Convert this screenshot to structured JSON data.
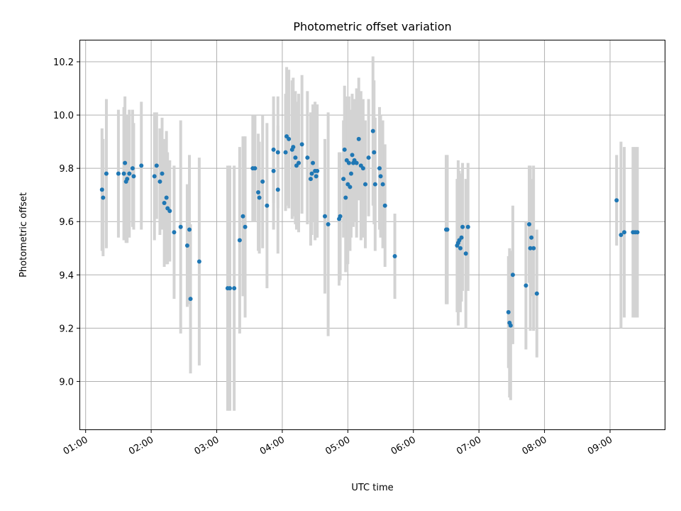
{
  "chart_data": {
    "type": "scatter",
    "title": "Photometric offset variation",
    "xlabel": "UTC time",
    "ylabel": "Photometric offset",
    "xlim": [
      "00:55",
      "09:50"
    ],
    "ylim": [
      8.82,
      10.28
    ],
    "grid": true,
    "x_ticks": [
      "01:00",
      "02:00",
      "03:00",
      "04:00",
      "05:00",
      "06:00",
      "07:00",
      "08:00",
      "09:00"
    ],
    "y_ticks": [
      "9.0",
      "9.2",
      "9.4",
      "9.6",
      "9.8",
      "10.0",
      "10.2"
    ],
    "y_tick_values": [
      9.0,
      9.2,
      9.4,
      9.6,
      9.8,
      10.0,
      10.2
    ],
    "colors": {
      "points": "#1f77b4",
      "error_bars": "#d3d3d3"
    },
    "series": [
      {
        "columns": [
          "time",
          "offset",
          "error"
        ],
        "points": [
          [
            "01:15",
            9.72,
            0.23
          ],
          [
            "01:16",
            9.69,
            0.22
          ],
          [
            "01:19",
            9.78,
            0.28
          ],
          [
            "01:30",
            9.78,
            0.24
          ],
          [
            "01:35",
            9.78,
            0.25
          ],
          [
            "01:36",
            9.82,
            0.25
          ],
          [
            "01:37",
            9.75,
            0.23
          ],
          [
            "01:38",
            9.76,
            0.24
          ],
          [
            "01:40",
            9.78,
            0.24
          ],
          [
            "01:43",
            9.8,
            0.22
          ],
          [
            "01:44",
            9.77,
            0.2
          ],
          [
            "01:51",
            9.81,
            0.24
          ],
          [
            "02:03",
            9.77,
            0.24
          ],
          [
            "02:05",
            9.81,
            0.2
          ],
          [
            "02:08",
            9.75,
            0.2
          ],
          [
            "02:10",
            9.78,
            0.21
          ],
          [
            "02:12",
            9.67,
            0.24
          ],
          [
            "02:14",
            9.69,
            0.25
          ],
          [
            "02:15",
            9.65,
            0.21
          ],
          [
            "02:17",
            9.64,
            0.19
          ],
          [
            "02:21",
            9.56,
            0.25
          ],
          [
            "02:27",
            9.58,
            0.4
          ],
          [
            "02:33",
            9.51,
            0.23
          ],
          [
            "02:35",
            9.57,
            0.28
          ],
          [
            "02:36",
            9.31,
            0.28
          ],
          [
            "02:44",
            9.45,
            0.39
          ],
          [
            "03:10",
            9.35,
            0.46
          ],
          [
            "03:12",
            9.35,
            0.46
          ],
          [
            "03:16",
            9.35,
            0.46
          ],
          [
            "03:21",
            9.53,
            0.35
          ],
          [
            "03:24",
            9.62,
            0.3
          ],
          [
            "03:26",
            9.58,
            0.34
          ],
          [
            "03:33",
            9.8,
            0.2
          ],
          [
            "03:35",
            9.8,
            0.2
          ],
          [
            "03:38",
            9.71,
            0.22
          ],
          [
            "03:39",
            9.69,
            0.21
          ],
          [
            "03:42",
            9.75,
            0.25
          ],
          [
            "03:46",
            9.66,
            0.31
          ],
          [
            "03:52",
            9.87,
            0.2
          ],
          [
            "03:52",
            9.79,
            0.22
          ],
          [
            "03:56",
            9.86,
            0.21
          ],
          [
            "03:56",
            9.72,
            0.24
          ],
          [
            "04:03",
            9.86,
            0.22
          ],
          [
            "04:04",
            9.92,
            0.26
          ],
          [
            "04:06",
            9.91,
            0.26
          ],
          [
            "04:09",
            9.87,
            0.26
          ],
          [
            "04:10",
            9.88,
            0.26
          ],
          [
            "04:12",
            9.84,
            0.25
          ],
          [
            "04:13",
            9.81,
            0.24
          ],
          [
            "04:15",
            9.82,
            0.26
          ],
          [
            "04:18",
            9.89,
            0.26
          ],
          [
            "04:23",
            9.84,
            0.25
          ],
          [
            "04:26",
            9.76,
            0.25
          ],
          [
            "04:27",
            9.78,
            0.23
          ],
          [
            "04:28",
            9.82,
            0.22
          ],
          [
            "04:30",
            9.79,
            0.26
          ],
          [
            "04:31",
            9.77,
            0.23
          ],
          [
            "04:32",
            9.79,
            0.25
          ],
          [
            "04:39",
            9.62,
            0.29
          ],
          [
            "04:42",
            9.59,
            0.42
          ],
          [
            "04:52",
            9.61,
            0.25
          ],
          [
            "04:53",
            9.62,
            0.24
          ],
          [
            "04:56",
            9.76,
            0.22
          ],
          [
            "04:57",
            9.87,
            0.24
          ],
          [
            "04:58",
            9.69,
            0.28
          ],
          [
            "04:59",
            9.83,
            0.24
          ],
          [
            "05:00",
            9.74,
            0.3
          ],
          [
            "05:01",
            9.82,
            0.25
          ],
          [
            "05:02",
            9.73,
            0.24
          ],
          [
            "05:03",
            9.78,
            0.24
          ],
          [
            "05:04",
            9.85,
            0.23
          ],
          [
            "05:05",
            9.82,
            0.24
          ],
          [
            "05:06",
            9.83,
            0.23
          ],
          [
            "05:08",
            9.82,
            0.28
          ],
          [
            "05:10",
            9.91,
            0.23
          ],
          [
            "05:12",
            9.81,
            0.28
          ],
          [
            "05:14",
            9.8,
            0.26
          ],
          [
            "05:16",
            9.74,
            0.24
          ],
          [
            "05:19",
            9.84,
            0.22
          ],
          [
            "05:23",
            9.94,
            0.28
          ],
          [
            "05:24",
            9.86,
            0.27
          ],
          [
            "05:25",
            9.74,
            0.25
          ],
          [
            "05:29",
            9.8,
            0.23
          ],
          [
            "05:30",
            9.77,
            0.23
          ],
          [
            "05:32",
            9.74,
            0.24
          ],
          [
            "05:34",
            9.66,
            0.23
          ],
          [
            "05:43",
            9.47,
            0.16
          ],
          [
            "06:30",
            9.57,
            0.28
          ],
          [
            "06:31",
            9.57,
            0.28
          ],
          [
            "06:40",
            9.51,
            0.25
          ],
          [
            "06:41",
            9.52,
            0.31
          ],
          [
            "06:42",
            9.53,
            0.26
          ],
          [
            "06:43",
            9.5,
            0.24
          ],
          [
            "06:44",
            9.54,
            0.24
          ],
          [
            "06:45",
            9.58,
            0.24
          ],
          [
            "06:48",
            9.48,
            0.28
          ],
          [
            "06:50",
            9.58,
            0.24
          ],
          [
            "07:27",
            9.26,
            0.21
          ],
          [
            "07:28",
            9.22,
            0.28
          ],
          [
            "07:29",
            9.21,
            0.28
          ],
          [
            "07:31",
            9.4,
            0.26
          ],
          [
            "07:43",
            9.36,
            0.24
          ],
          [
            "07:46",
            9.59,
            0.22
          ],
          [
            "07:47",
            9.5,
            0.31
          ],
          [
            "07:48",
            9.54,
            0.22
          ],
          [
            "07:50",
            9.5,
            0.31
          ],
          [
            "07:53",
            9.33,
            0.24
          ],
          [
            "09:06",
            9.68,
            0.17
          ],
          [
            "09:10",
            9.55,
            0.35
          ],
          [
            "09:13",
            9.56,
            0.32
          ],
          [
            "09:21",
            9.56,
            0.32
          ],
          [
            "09:23",
            9.56,
            0.32
          ],
          [
            "09:25",
            9.56,
            0.32
          ]
        ]
      }
    ]
  }
}
